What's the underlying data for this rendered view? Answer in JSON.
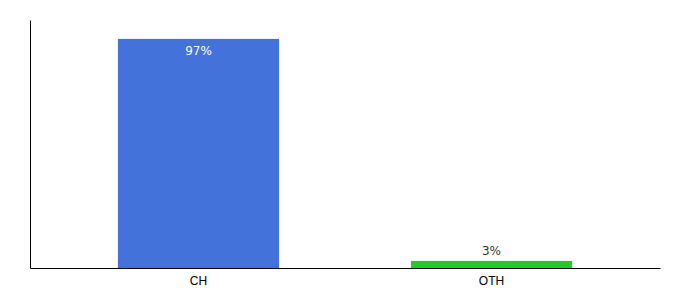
{
  "chart_data": {
    "type": "bar",
    "categories": [
      "CH",
      "OTH"
    ],
    "values": [
      97,
      3
    ],
    "colors": [
      "#4472db",
      "#22cc22"
    ],
    "data_labels": true,
    "value_labels": [
      "97%",
      "3%"
    ],
    "ylim": [
      0,
      105
    ],
    "tick_labels": "x"
  }
}
